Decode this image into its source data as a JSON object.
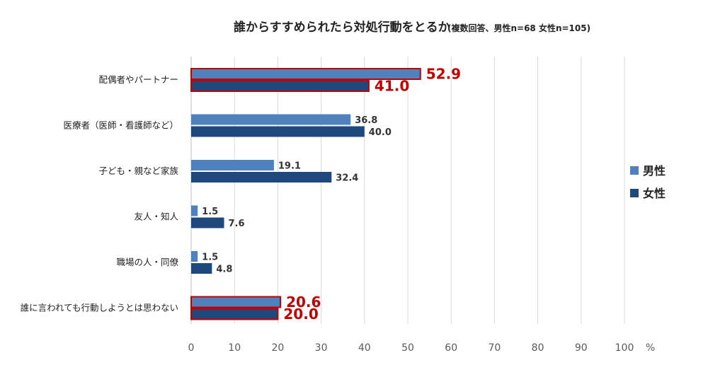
{
  "chart_data": {
    "type": "bar",
    "orientation": "horizontal",
    "title": "誰からすすめられたら対処行動をとるか",
    "subtitle": "(複数回答、男性n=68 女性n=105)",
    "categories": [
      "配偶者やパートナー",
      "医療者（医師・看護師など）",
      "子ども・親など家族",
      "友人・知人",
      "職場の人・同僚",
      "誰に言われても行動しようとは思わない"
    ],
    "series": [
      {
        "name": "男性",
        "color": "#4f81bd",
        "values": [
          52.9,
          36.8,
          19.1,
          1.5,
          1.5,
          20.6
        ],
        "labels": [
          "52.9",
          "36.8",
          "19.1",
          "1.5",
          "1.5",
          "20.6"
        ]
      },
      {
        "name": "女性",
        "color": "#1f497d",
        "values": [
          41.0,
          40.0,
          32.4,
          7.6,
          4.8,
          20.0
        ],
        "labels": [
          "41.0",
          "40.0",
          "32.4",
          "7.6",
          "4.8",
          "20.0"
        ]
      }
    ],
    "highlighted_categories": [
      0,
      5
    ],
    "highlight_color": "#c00000",
    "xlim": [
      0,
      100
    ],
    "xticks": [
      "0",
      "10",
      "20",
      "30",
      "40",
      "50",
      "60",
      "70",
      "80",
      "90",
      "100"
    ],
    "xunit": "%",
    "grid": true,
    "legend_position": "right"
  }
}
